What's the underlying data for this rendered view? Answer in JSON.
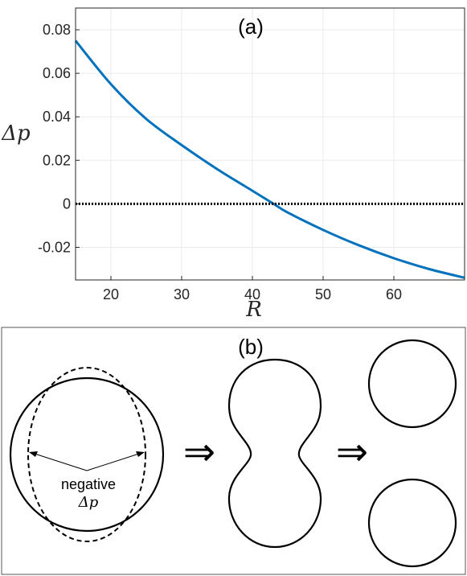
{
  "chart_data": {
    "type": "line",
    "panel_label": "(a)",
    "xlabel": "R",
    "ylabel": "Δp",
    "xlim": [
      15,
      70
    ],
    "ylim": [
      -0.035,
      0.09
    ],
    "x_ticks": [
      20,
      30,
      40,
      50,
      60
    ],
    "y_ticks": [
      0.08,
      0.06,
      0.04,
      0.02,
      0,
      -0.02
    ],
    "y_tick_labels": [
      "0.08",
      "0.06",
      "0.04",
      "0.02",
      "0",
      "-0.02"
    ],
    "grid": true,
    "series": [
      {
        "color": "#0072bd",
        "x": [
          15,
          20,
          25,
          30,
          35,
          40,
          43,
          45,
          50,
          55,
          60,
          65,
          70
        ],
        "y": [
          0.075,
          0.055,
          0.039,
          0.027,
          0.016,
          0.006,
          0.0,
          -0.004,
          -0.012,
          -0.019,
          -0.025,
          -0.03,
          -0.034
        ]
      },
      {
        "color": "#000000",
        "style": "dotted",
        "x": [
          15,
          70
        ],
        "y": [
          0,
          0
        ]
      }
    ]
  },
  "diagram": {
    "panel_label": "(b)",
    "annotation_line1": "negative",
    "annotation_line2": "Δp",
    "arrow_glyph": "⇒"
  }
}
